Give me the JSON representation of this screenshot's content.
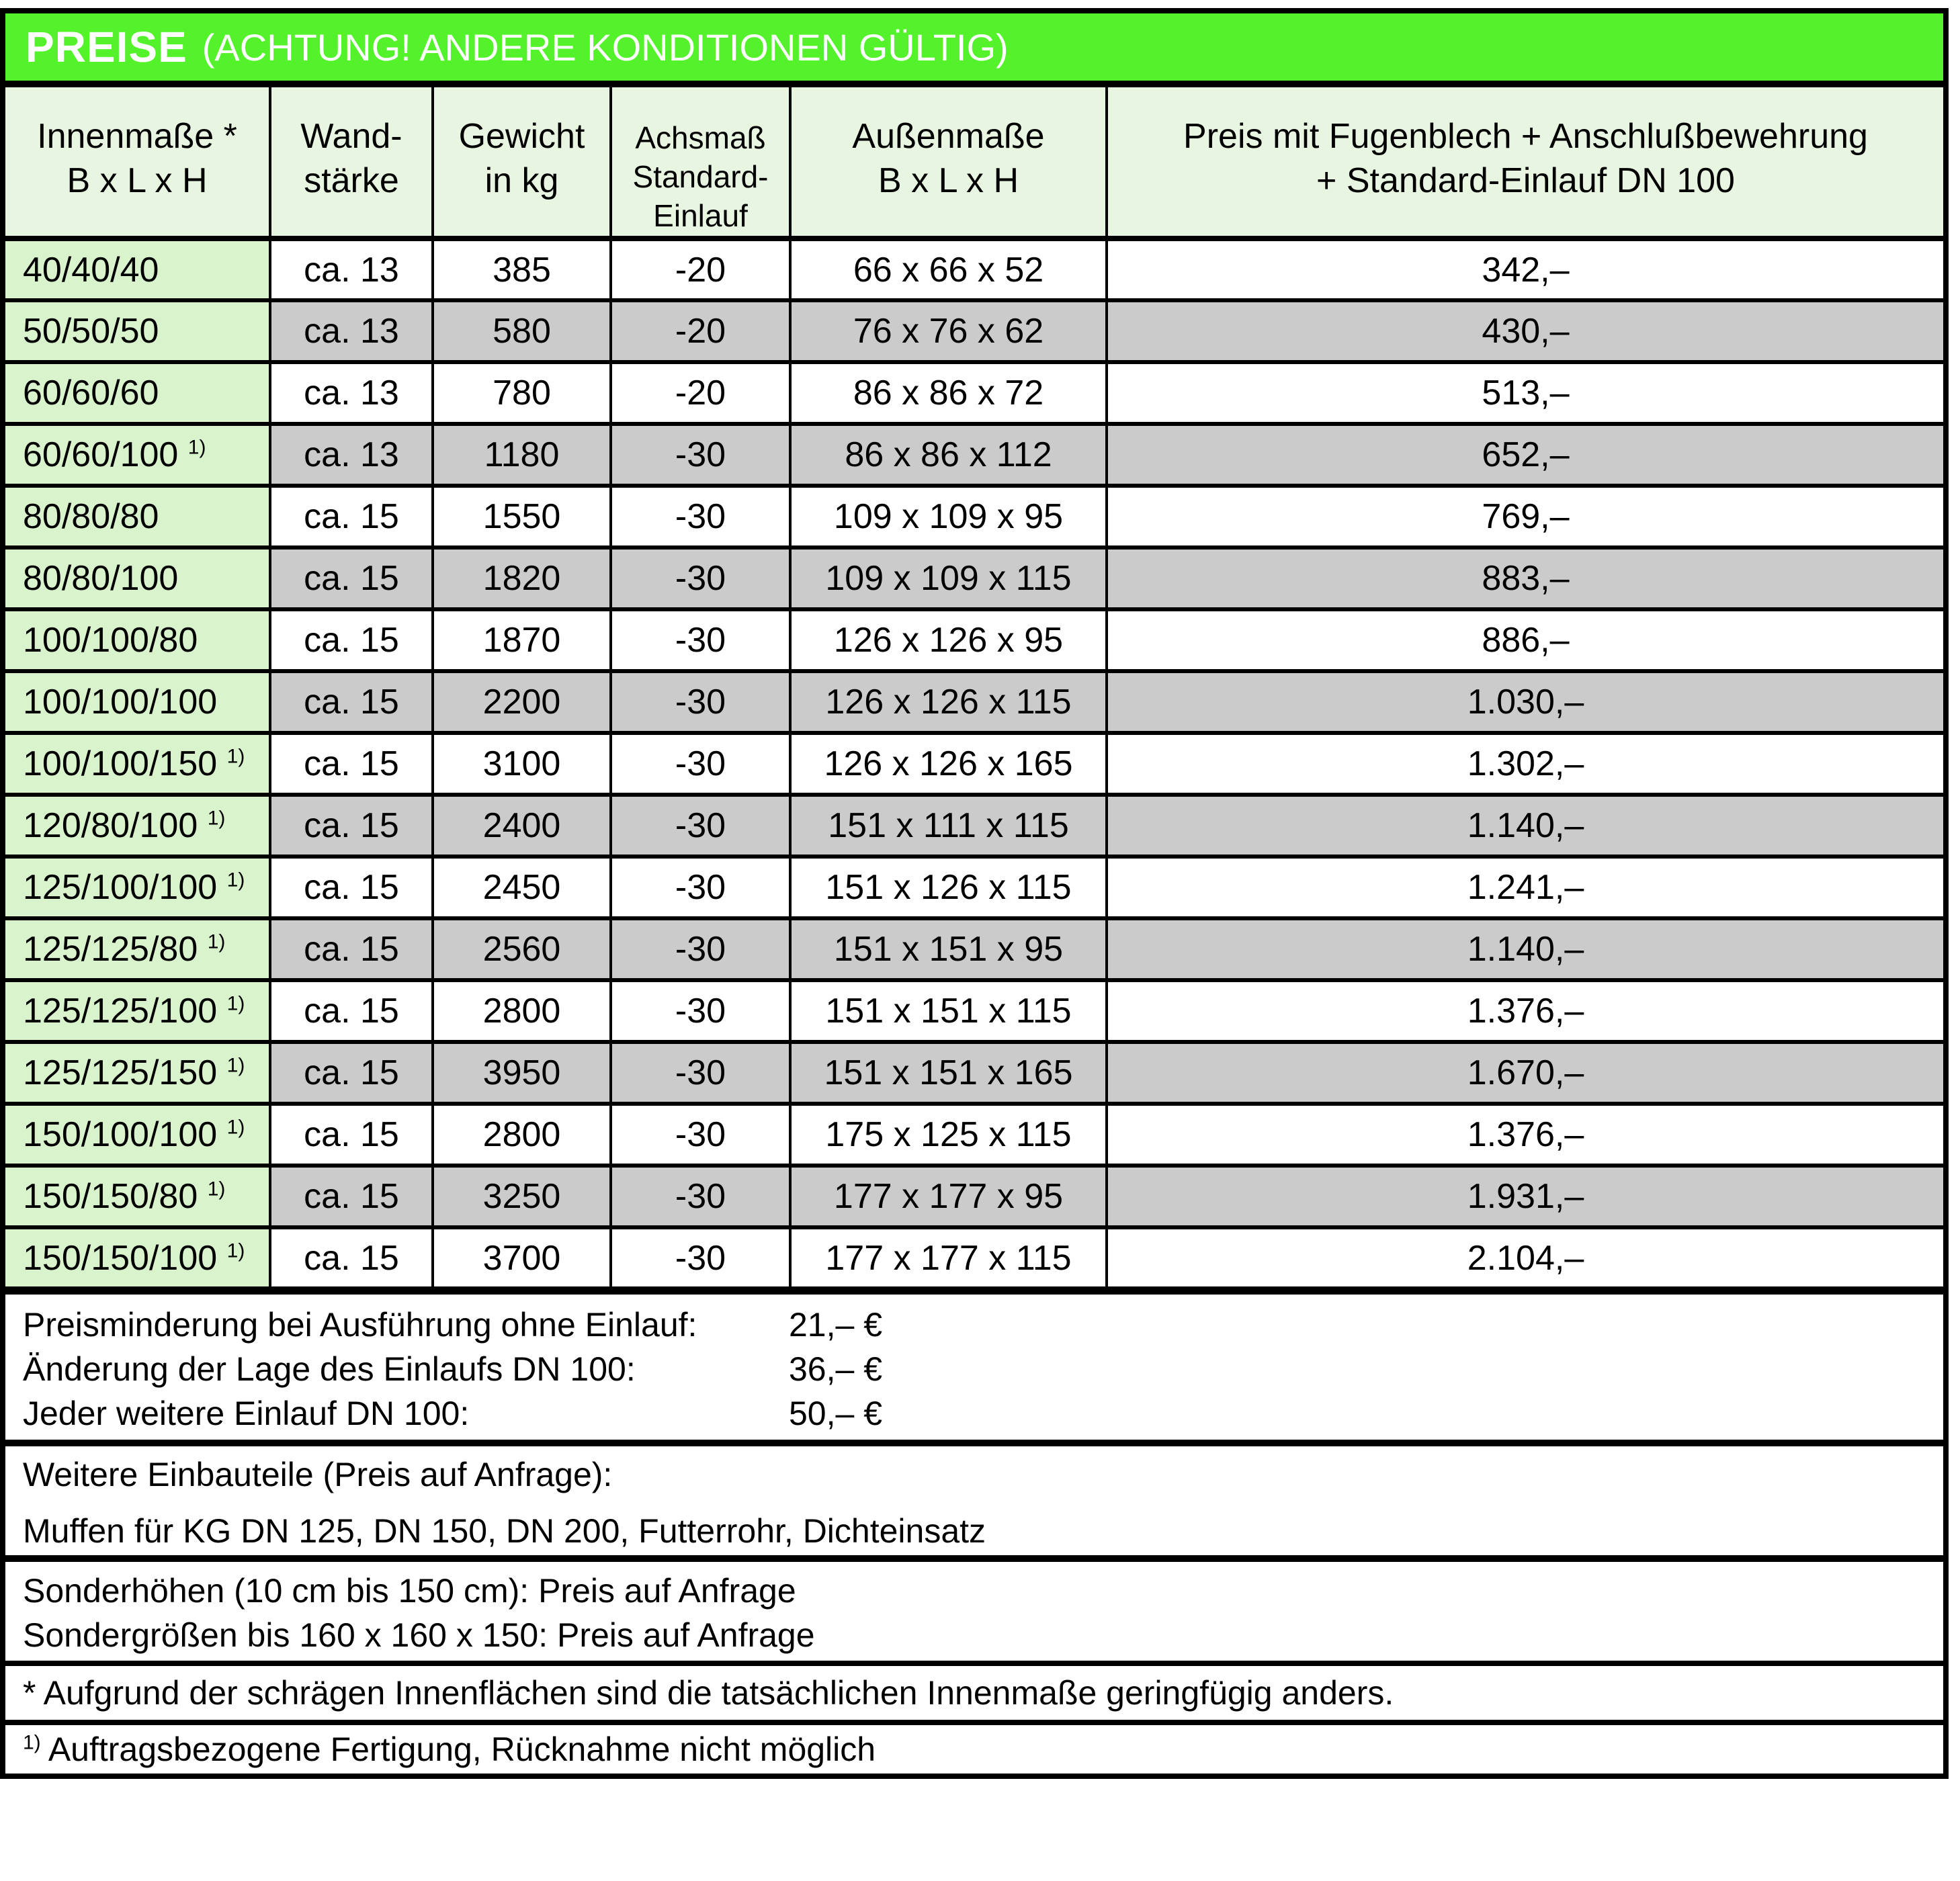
{
  "title": {
    "main": "PREISE",
    "sub": "(ACHTUNG! ANDERE KONDITIONEN GÜLTIG)"
  },
  "colors": {
    "header_green": "#54f22b",
    "light_green": "#e7f5e1",
    "row_green": "#d9f3cd",
    "row_gray": "#cbcbcb",
    "border_black": "#000000",
    "title_text": "#ffffff"
  },
  "table": {
    "footnote_marker": "1)",
    "header": {
      "innenmasse": [
        "Innenmaße *",
        "B x L x H"
      ],
      "wandstaerke": [
        "Wand-",
        "stärke"
      ],
      "gewicht": [
        "Gewicht",
        "in kg"
      ],
      "achsmass": [
        "Achsmaß",
        "Standard-",
        "Einlauf"
      ],
      "aussenmasse": [
        "Außenmaße",
        "B x L x H"
      ],
      "preis": [
        "Preis mit Fugenblech + Anschlußbewehrung",
        "+ Standard-Einlauf DN 100"
      ]
    },
    "rows": [
      {
        "innen": "40/40/40",
        "fn": false,
        "wand": "ca. 13",
        "gewicht": "385",
        "achsmass": "-20",
        "aussen": "66 x 66 x 52",
        "preis": "342,–",
        "shaded": false
      },
      {
        "innen": "50/50/50",
        "fn": false,
        "wand": "ca. 13",
        "gewicht": "580",
        "achsmass": "-20",
        "aussen": "76 x 76 x 62",
        "preis": "430,–",
        "shaded": true
      },
      {
        "innen": "60/60/60",
        "fn": false,
        "wand": "ca. 13",
        "gewicht": "780",
        "achsmass": "-20",
        "aussen": "86 x 86 x 72",
        "preis": "513,–",
        "shaded": false
      },
      {
        "innen": "60/60/100",
        "fn": true,
        "wand": "ca. 13",
        "gewicht": "1180",
        "achsmass": "-30",
        "aussen": "86 x 86 x 112",
        "preis": "652,–",
        "shaded": true
      },
      {
        "innen": "80/80/80",
        "fn": false,
        "wand": "ca. 15",
        "gewicht": "1550",
        "achsmass": "-30",
        "aussen": "109 x 109 x 95",
        "preis": "769,–",
        "shaded": false
      },
      {
        "innen": "80/80/100",
        "fn": false,
        "wand": "ca. 15",
        "gewicht": "1820",
        "achsmass": "-30",
        "aussen": "109 x 109 x 115",
        "preis": "883,–",
        "shaded": true
      },
      {
        "innen": "100/100/80",
        "fn": false,
        "wand": "ca. 15",
        "gewicht": "1870",
        "achsmass": "-30",
        "aussen": "126 x 126 x 95",
        "preis": "886,–",
        "shaded": false
      },
      {
        "innen": "100/100/100",
        "fn": false,
        "wand": "ca. 15",
        "gewicht": "2200",
        "achsmass": "-30",
        "aussen": "126 x 126 x 115",
        "preis": "1.030,–",
        "shaded": true
      },
      {
        "innen": "100/100/150",
        "fn": true,
        "wand": "ca. 15",
        "gewicht": "3100",
        "achsmass": "-30",
        "aussen": "126 x 126 x 165",
        "preis": "1.302,–",
        "shaded": false
      },
      {
        "innen": "120/80/100",
        "fn": true,
        "wand": "ca. 15",
        "gewicht": "2400",
        "achsmass": "-30",
        "aussen": "151 x 111 x 115",
        "preis": "1.140,–",
        "shaded": true
      },
      {
        "innen": "125/100/100",
        "fn": true,
        "wand": "ca. 15",
        "gewicht": "2450",
        "achsmass": "-30",
        "aussen": "151 x 126 x 115",
        "preis": "1.241,–",
        "shaded": false
      },
      {
        "innen": "125/125/80",
        "fn": true,
        "wand": "ca. 15",
        "gewicht": "2560",
        "achsmass": "-30",
        "aussen": "151 x 151 x 95",
        "preis": "1.140,–",
        "shaded": true
      },
      {
        "innen": "125/125/100",
        "fn": true,
        "wand": "ca. 15",
        "gewicht": "2800",
        "achsmass": "-30",
        "aussen": "151 x 151 x 115",
        "preis": "1.376,–",
        "shaded": false
      },
      {
        "innen": "125/125/150",
        "fn": true,
        "wand": "ca. 15",
        "gewicht": "3950",
        "achsmass": "-30",
        "aussen": "151 x 151 x 165",
        "preis": "1.670,–",
        "shaded": true
      },
      {
        "innen": "150/100/100",
        "fn": true,
        "wand": "ca. 15",
        "gewicht": "2800",
        "achsmass": "-30",
        "aussen": "175 x 125 x 115",
        "preis": "1.376,–",
        "shaded": false
      },
      {
        "innen": "150/150/80",
        "fn": true,
        "wand": "ca. 15",
        "gewicht": "3250",
        "achsmass": "-30",
        "aussen": "177 x 177 x 95",
        "preis": "1.931,–",
        "shaded": true
      },
      {
        "innen": "150/150/100",
        "fn": true,
        "wand": "ca. 15",
        "gewicht": "3700",
        "achsmass": "-30",
        "aussen": "177 x 177 x 115",
        "preis": "2.104,–",
        "shaded": false
      }
    ]
  },
  "notes": {
    "surcharges": [
      {
        "label": "Preisminderung bei Ausführung ohne Einlauf:",
        "value": "21,– €"
      },
      {
        "label": "Änderung der Lage des Einlaufs DN 100:",
        "value": "36,– €"
      },
      {
        "label": "Jeder weitere Einlauf DN 100:",
        "value": "50,– €"
      }
    ],
    "parts_line1": "Weitere Einbauteile (Preis auf Anfrage):",
    "parts_line2": "Muffen für KG DN 125, DN 150, DN 200, Futterrohr, Dichteinsatz",
    "special_line1": "Sonderhöhen (10 cm bis 150 cm): Preis auf Anfrage",
    "special_line2": "Sondergrößen bis 160 x 160 x 150: Preis auf Anfrage",
    "star_note": "* Aufgrund der schrägen Innenflächen sind die tatsächlichen Innenmaße geringfügig anders.",
    "fn1_marker": "1)",
    "fn1_text": "Auftragsbezogene Fertigung, Rücknahme nicht möglich"
  }
}
